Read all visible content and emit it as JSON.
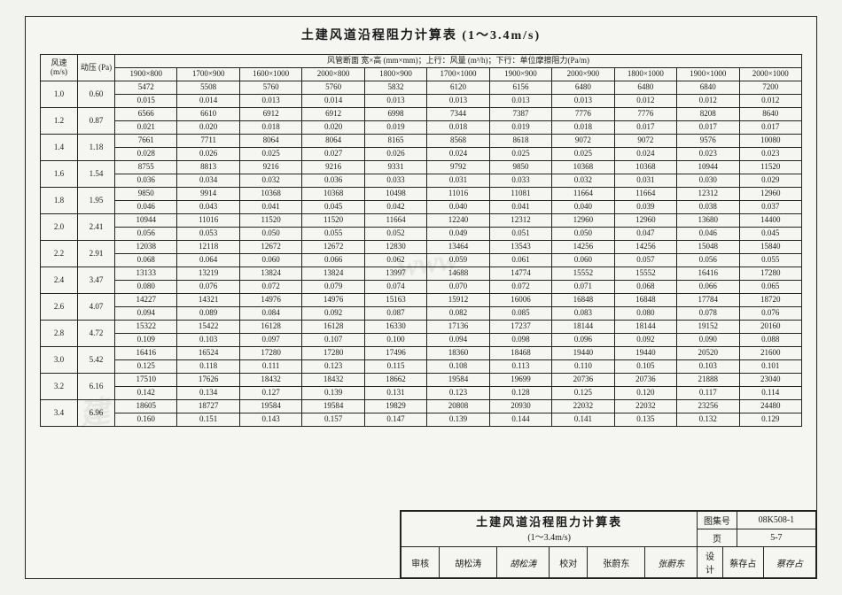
{
  "page": {
    "title": "土建风道沿程阻力计算表  (1～3.4m/s)",
    "header_group": "风管断面  宽×高 (mm×mm)；上行：风量 (m³/h)；下行：单位摩擦阻力(Pa/m)",
    "col_speed": "风速\n(m/s)",
    "col_press": "动压\n(Pa)"
  },
  "columns": [
    "1900×800",
    "1700×900",
    "1600×1000",
    "2000×800",
    "1800×900",
    "1700×1000",
    "1900×900",
    "2000×900",
    "1800×1000",
    "1900×1000",
    "2000×1000"
  ],
  "rows": [
    {
      "speed": "1.0",
      "press": "0.60",
      "flow": [
        "5472",
        "5508",
        "5760",
        "5760",
        "5832",
        "6120",
        "6156",
        "6480",
        "6480",
        "6840",
        "7200"
      ],
      "fric": [
        "0.015",
        "0.014",
        "0.013",
        "0.014",
        "0.013",
        "0.013",
        "0.013",
        "0.013",
        "0.012",
        "0.012",
        "0.012"
      ]
    },
    {
      "speed": "1.2",
      "press": "0.87",
      "flow": [
        "6566",
        "6610",
        "6912",
        "6912",
        "6998",
        "7344",
        "7387",
        "7776",
        "7776",
        "8208",
        "8640"
      ],
      "fric": [
        "0.021",
        "0.020",
        "0.018",
        "0.020",
        "0.019",
        "0.018",
        "0.019",
        "0.018",
        "0.017",
        "0.017",
        "0.017"
      ]
    },
    {
      "speed": "1.4",
      "press": "1.18",
      "flow": [
        "7661",
        "7711",
        "8064",
        "8064",
        "8165",
        "8568",
        "8618",
        "9072",
        "9072",
        "9576",
        "10080"
      ],
      "fric": [
        "0.028",
        "0.026",
        "0.025",
        "0.027",
        "0.026",
        "0.024",
        "0.025",
        "0.025",
        "0.024",
        "0.023",
        "0.023"
      ]
    },
    {
      "speed": "1.6",
      "press": "1.54",
      "flow": [
        "8755",
        "8813",
        "9216",
        "9216",
        "9331",
        "9792",
        "9850",
        "10368",
        "10368",
        "10944",
        "11520"
      ],
      "fric": [
        "0.036",
        "0.034",
        "0.032",
        "0.036",
        "0.033",
        "0.031",
        "0.033",
        "0.032",
        "0.031",
        "0.030",
        "0.029"
      ]
    },
    {
      "speed": "1.8",
      "press": "1.95",
      "flow": [
        "9850",
        "9914",
        "10368",
        "10368",
        "10498",
        "11016",
        "11081",
        "11664",
        "11664",
        "12312",
        "12960"
      ],
      "fric": [
        "0.046",
        "0.043",
        "0.041",
        "0.045",
        "0.042",
        "0.040",
        "0.041",
        "0.040",
        "0.039",
        "0.038",
        "0.037"
      ]
    },
    {
      "speed": "2.0",
      "press": "2.41",
      "flow": [
        "10944",
        "11016",
        "11520",
        "11520",
        "11664",
        "12240",
        "12312",
        "12960",
        "12960",
        "13680",
        "14400"
      ],
      "fric": [
        "0.056",
        "0.053",
        "0.050",
        "0.055",
        "0.052",
        "0.049",
        "0.051",
        "0.050",
        "0.047",
        "0.046",
        "0.045"
      ]
    },
    {
      "speed": "2.2",
      "press": "2.91",
      "flow": [
        "12038",
        "12118",
        "12672",
        "12672",
        "12830",
        "13464",
        "13543",
        "14256",
        "14256",
        "15048",
        "15840"
      ],
      "fric": [
        "0.068",
        "0.064",
        "0.060",
        "0.066",
        "0.062",
        "0.059",
        "0.061",
        "0.060",
        "0.057",
        "0.056",
        "0.055"
      ]
    },
    {
      "speed": "2.4",
      "press": "3.47",
      "flow": [
        "13133",
        "13219",
        "13824",
        "13824",
        "13997",
        "14688",
        "14774",
        "15552",
        "15552",
        "16416",
        "17280"
      ],
      "fric": [
        "0.080",
        "0.076",
        "0.072",
        "0.079",
        "0.074",
        "0.070",
        "0.072",
        "0.071",
        "0.068",
        "0.066",
        "0.065"
      ]
    },
    {
      "speed": "2.6",
      "press": "4.07",
      "flow": [
        "14227",
        "14321",
        "14976",
        "14976",
        "15163",
        "15912",
        "16006",
        "16848",
        "16848",
        "17784",
        "18720"
      ],
      "fric": [
        "0.094",
        "0.089",
        "0.084",
        "0.092",
        "0.087",
        "0.082",
        "0.085",
        "0.083",
        "0.080",
        "0.078",
        "0.076"
      ]
    },
    {
      "speed": "2.8",
      "press": "4.72",
      "flow": [
        "15322",
        "15422",
        "16128",
        "16128",
        "16330",
        "17136",
        "17237",
        "18144",
        "18144",
        "19152",
        "20160"
      ],
      "fric": [
        "0.109",
        "0.103",
        "0.097",
        "0.107",
        "0.100",
        "0.094",
        "0.098",
        "0.096",
        "0.092",
        "0.090",
        "0.088"
      ]
    },
    {
      "speed": "3.0",
      "press": "5.42",
      "flow": [
        "16416",
        "16524",
        "17280",
        "17280",
        "17496",
        "18360",
        "18468",
        "19440",
        "19440",
        "20520",
        "21600"
      ],
      "fric": [
        "0.125",
        "0.118",
        "0.111",
        "0.123",
        "0.115",
        "0.108",
        "0.113",
        "0.110",
        "0.105",
        "0.103",
        "0.101"
      ]
    },
    {
      "speed": "3.2",
      "press": "6.16",
      "flow": [
        "17510",
        "17626",
        "18432",
        "18432",
        "18662",
        "19584",
        "19699",
        "20736",
        "20736",
        "21888",
        "23040"
      ],
      "fric": [
        "0.142",
        "0.134",
        "0.127",
        "0.139",
        "0.131",
        "0.123",
        "0.128",
        "0.125",
        "0.120",
        "0.117",
        "0.114"
      ]
    },
    {
      "speed": "3.4",
      "press": "6.96",
      "flow": [
        "18605",
        "18727",
        "19584",
        "19584",
        "19829",
        "20808",
        "20930",
        "22032",
        "22032",
        "23256",
        "24480"
      ],
      "fric": [
        "0.160",
        "0.151",
        "0.143",
        "0.157",
        "0.147",
        "0.139",
        "0.144",
        "0.141",
        "0.135",
        "0.132",
        "0.129"
      ]
    }
  ],
  "footer": {
    "title": "土建风道沿程阻力计算表",
    "subtitle": "(1～3.4m/s)",
    "code_label": "图集号",
    "code_value": "08K508-1",
    "review_label": "审核",
    "review_name": "胡松涛",
    "review_sig": "胡松涛",
    "check_label": "校对",
    "check_name": "张蔚东",
    "check_sig": "张蔚东",
    "design_label": "设计",
    "design_name": "蔡存占",
    "design_sig": "蔡存占",
    "page_label": "页",
    "page_value": "5-7"
  },
  "style": {
    "bg": "#f2f2ef",
    "border": "#222222",
    "text": "#1a1a1a",
    "title_fontsize": 14,
    "table_fontsize": 9
  }
}
